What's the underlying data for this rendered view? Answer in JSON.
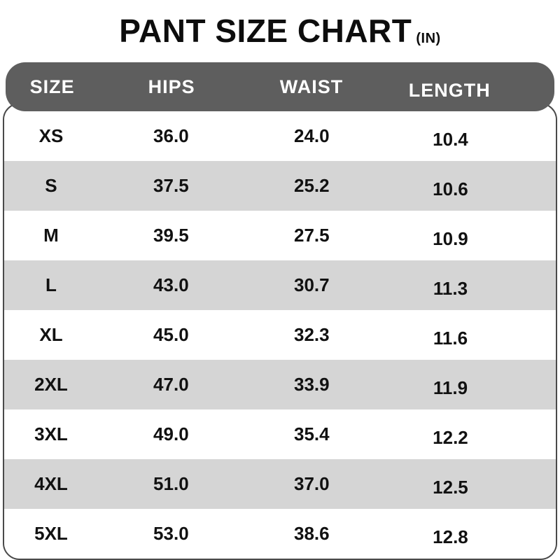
{
  "title": {
    "main": "PANT SIZE CHART",
    "unit": "(IN)"
  },
  "table": {
    "columns": [
      "SIZE",
      "HIPS",
      "WAIST",
      "LENGTH"
    ],
    "rows": [
      {
        "size": "XS",
        "hips": "36.0",
        "waist": "24.0",
        "length": "10.4"
      },
      {
        "size": "S",
        "hips": "37.5",
        "waist": "25.2",
        "length": "10.6"
      },
      {
        "size": "M",
        "hips": "39.5",
        "waist": "27.5",
        "length": "10.9"
      },
      {
        "size": "L",
        "hips": "43.0",
        "waist": "30.7",
        "length": "11.3"
      },
      {
        "size": "XL",
        "hips": "45.0",
        "waist": "32.3",
        "length": "11.6"
      },
      {
        "size": "2XL",
        "hips": "47.0",
        "waist": "33.9",
        "length": "11.9"
      },
      {
        "size": "3XL",
        "hips": "49.0",
        "waist": "35.4",
        "length": "12.2"
      },
      {
        "size": "4XL",
        "hips": "51.0",
        "waist": "37.0",
        "length": "12.5"
      },
      {
        "size": "5XL",
        "hips": "53.0",
        "waist": "38.6",
        "length": "12.8"
      }
    ]
  },
  "colors": {
    "header_bg": "#5e5e5e",
    "row_alt_bg": "#d5d5d5",
    "border": "#4a4a4a",
    "text": "#111111"
  }
}
